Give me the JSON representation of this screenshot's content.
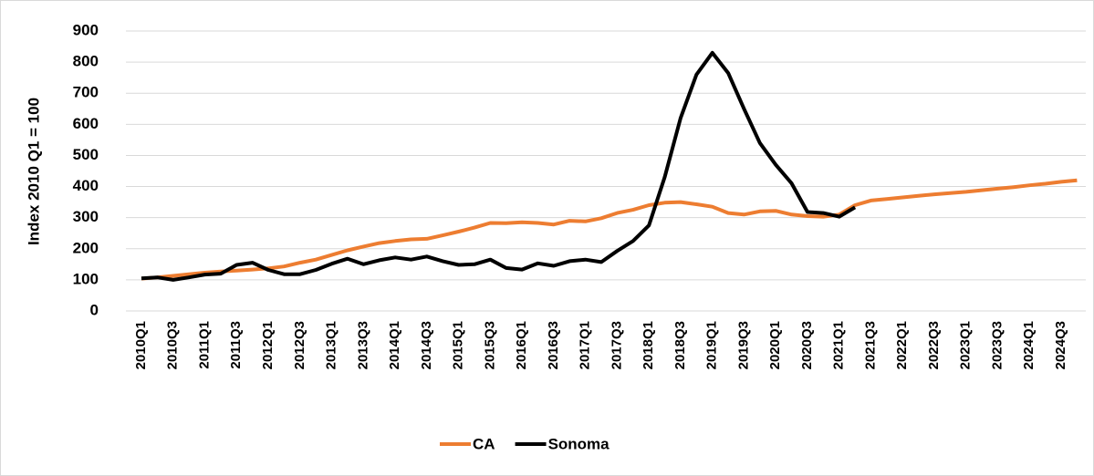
{
  "chart_data": {
    "type": "line",
    "y_label": "Index 2010 Q1 = 100",
    "categories": [
      "2010Q1",
      null,
      "2010Q3",
      null,
      "2011Q1",
      null,
      "2011Q3",
      null,
      "2012Q1",
      null,
      "2012Q3",
      null,
      "2013Q1",
      null,
      "2013Q3",
      null,
      "2014Q1",
      null,
      "2014Q3",
      null,
      "2015Q1",
      null,
      "2015Q3",
      null,
      "2016Q1",
      null,
      "2016Q3",
      null,
      "2017Q1",
      null,
      "2017Q3",
      null,
      "2018Q1",
      null,
      "2018Q3",
      null,
      "2019Q1",
      null,
      "2019Q3",
      null,
      "2020Q1",
      null,
      "2020Q3",
      null,
      "2021Q1",
      null,
      "2021Q3",
      null,
      "2022Q1",
      null,
      "2022Q3",
      null,
      "2023Q1",
      null,
      "2023Q3",
      null,
      "2024Q1",
      null,
      "2024Q3",
      null
    ],
    "series": [
      {
        "name": "CA",
        "color": "#ed7d31",
        "values": [
          104,
          108,
          113,
          118,
          123,
          127,
          130,
          133,
          137,
          143,
          155,
          165,
          180,
          195,
          207,
          218,
          225,
          230,
          232,
          243,
          255,
          268,
          283,
          282,
          285,
          283,
          278,
          290,
          288,
          298,
          315,
          325,
          340,
          348,
          350,
          343,
          335,
          315,
          310,
          320,
          322,
          310,
          305,
          303,
          310,
          340,
          355,
          360,
          365,
          370,
          375,
          379,
          383,
          388,
          393,
          398,
          404,
          409,
          415,
          420
        ]
      },
      {
        "name": "Sonoma",
        "color": "#000000",
        "values": [
          105,
          108,
          100,
          108,
          117,
          120,
          148,
          155,
          132,
          118,
          118,
          132,
          152,
          168,
          150,
          163,
          172,
          165,
          175,
          160,
          148,
          150,
          165,
          138,
          133,
          153,
          145,
          160,
          165,
          157,
          193,
          225,
          275,
          430,
          620,
          760,
          830,
          765,
          650,
          540,
          470,
          410,
          318,
          315,
          303,
          333,
          null,
          null,
          null,
          null,
          null,
          null,
          null,
          null,
          null,
          null,
          null,
          null,
          null,
          null
        ]
      }
    ],
    "ylim": [
      0,
      900
    ],
    "yticks": [
      0,
      100,
      200,
      300,
      400,
      500,
      600,
      700,
      800,
      900
    ],
    "grid": true,
    "legend": "bottom"
  }
}
